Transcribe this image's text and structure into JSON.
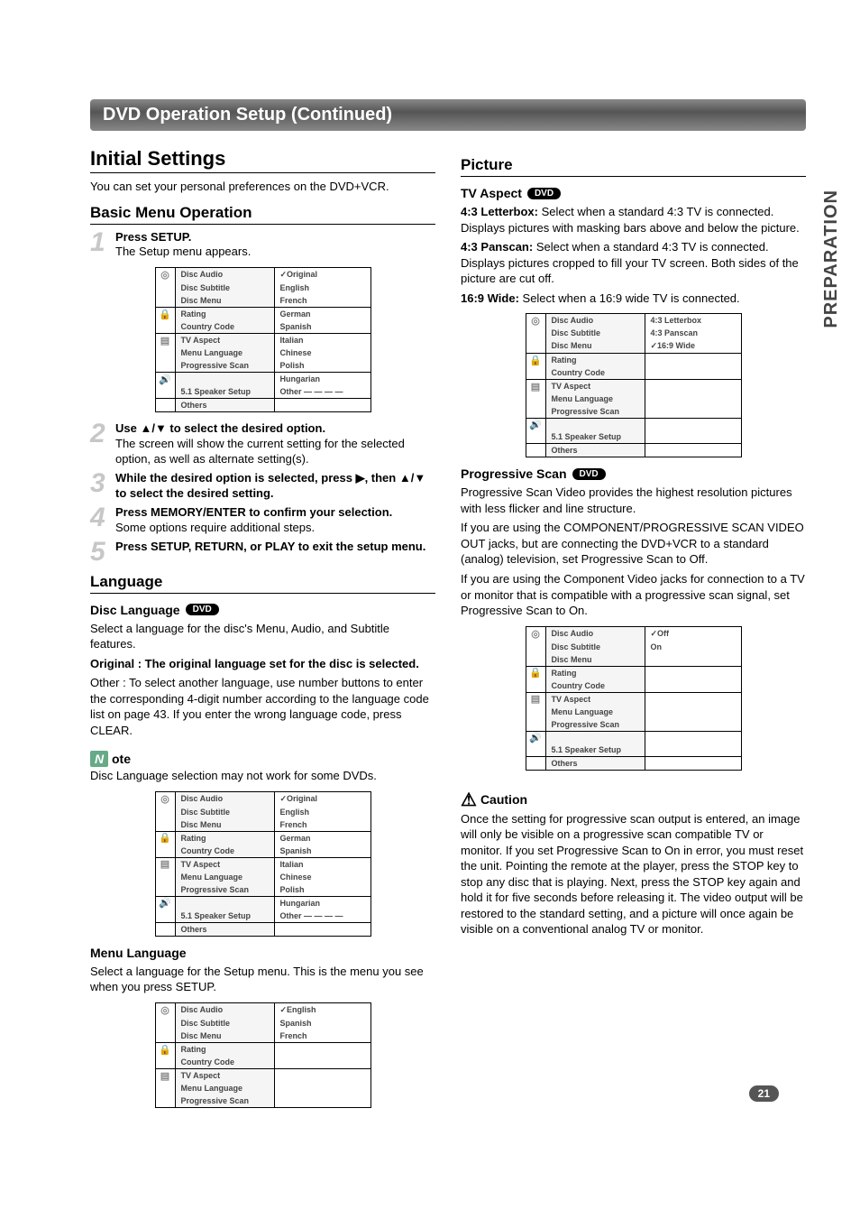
{
  "side_tab": "PREPARATION",
  "page_number": "21",
  "title_bar": "DVD Operation Setup  (Continued)",
  "left": {
    "initial_settings": {
      "heading": "Initial Settings",
      "intro": "You can set your personal preferences on the DVD+VCR."
    },
    "basic_menu": {
      "heading": "Basic Menu Operation",
      "steps": [
        {
          "num": "1",
          "lead": "Press SETUP.",
          "rest": "The Setup menu appears."
        },
        {
          "num": "2",
          "lead": "Use ▲/▼ to select the desired option.",
          "rest": "The screen will show the current setting for the selected option, as well as alternate setting(s)."
        },
        {
          "num": "3",
          "lead": "While the desired option is selected, press ▶, then ▲/▼ to select the desired setting.",
          "rest": ""
        },
        {
          "num": "4",
          "lead": "Press MEMORY/ENTER to confirm your selection.",
          "rest": "Some options require additional steps."
        },
        {
          "num": "5",
          "lead": "Press SETUP, RETURN, or PLAY to exit the setup menu.",
          "rest": ""
        }
      ]
    },
    "language": {
      "heading": "Language",
      "disc_lang_title": "Disc Language",
      "disc_lang_body": "Select a language for the disc's Menu, Audio, and Subtitle features.",
      "original": "Original : The original language set for the disc is selected.",
      "other": "Other : To select another language, use number buttons to enter the corresponding 4-digit number according to the language code list on page 43. If you enter the wrong language code, press CLEAR.",
      "note_label": "ote",
      "note_body": "Disc Language selection may not work for some DVDs.",
      "menu_lang_title": "Menu Language",
      "menu_lang_body": "Select a language for the Setup menu. This is the menu you see when you press SETUP."
    },
    "menu1": {
      "left_items": [
        "Disc Audio",
        "Disc Subtitle",
        "Disc Menu",
        "Rating",
        "Country Code",
        "TV Aspect",
        "Menu Language",
        "Progressive Scan",
        "",
        "5.1 Speaker Setup",
        "Others"
      ],
      "right_items": [
        "✓Original",
        "English",
        "French",
        "German",
        "Spanish",
        "Italian",
        "Chinese",
        "Polish",
        "Hungarian",
        "Other  — — — —"
      ]
    },
    "menu2": {
      "left_items": [
        "Disc Audio",
        "Disc Subtitle",
        "Disc Menu",
        "Rating",
        "Country Code",
        "TV Aspect",
        "Menu Language",
        "Progressive Scan",
        "",
        "5.1 Speaker Setup",
        "Others"
      ],
      "right_items": [
        "✓Original",
        "English",
        "French",
        "German",
        "Spanish",
        "Italian",
        "Chinese",
        "Polish",
        "Hungarian",
        "Other  — — — —"
      ]
    },
    "menu3": {
      "left_items": [
        "Disc Audio",
        "Disc Subtitle",
        "Disc Menu",
        "Rating",
        "Country Code",
        "TV Aspect",
        "Menu Language",
        "Progressive Scan"
      ],
      "right_items": [
        "✓English",
        "Spanish",
        "French"
      ]
    }
  },
  "right": {
    "picture": {
      "heading": "Picture",
      "tv_aspect_title": "TV Aspect",
      "p1_lead": "4:3 Letterbox:",
      "p1": " Select when a standard 4:3 TV is connected. Displays pictures with masking bars above and below the picture.",
      "p2_lead": "4:3 Panscan:",
      "p2": " Select when a standard 4:3 TV is connected. Displays pictures cropped to fill your TV screen. Both sides of the picture are cut off.",
      "p3_lead": "16:9 Wide:",
      "p3": " Select when a 16:9 wide TV is connected."
    },
    "menu4": {
      "left_items": [
        "Disc Audio",
        "Disc Subtitle",
        "Disc Menu",
        "Rating",
        "Country Code",
        "TV Aspect",
        "Menu Language",
        "Progressive Scan",
        "",
        "5.1 Speaker Setup",
        "Others"
      ],
      "right_items": [
        "4:3 Letterbox",
        "4:3 Panscan",
        "✓16:9 Wide"
      ]
    },
    "progressive": {
      "title": "Progressive Scan",
      "p1": "Progressive Scan Video provides the highest resolution pictures with less flicker and line structure.",
      "p2": "If you are using the COMPONENT/PROGRESSIVE SCAN VIDEO OUT jacks, but are connecting the DVD+VCR to a standard (analog) television, set Progressive Scan to Off.",
      "p3": "If you are using the Component Video jacks for connection to a TV or monitor that is compatible with a progressive scan signal, set Progressive Scan to On."
    },
    "menu5": {
      "left_items": [
        "Disc Audio",
        "Disc Subtitle",
        "Disc Menu",
        "Rating",
        "Country Code",
        "TV Aspect",
        "Menu Language",
        "Progressive Scan",
        "",
        "5.1 Speaker Setup",
        "Others"
      ],
      "right_items": [
        "✓Off",
        "On"
      ]
    },
    "caution": {
      "label": "Caution",
      "body": "Once the setting for progressive scan output is entered, an image will only be visible on a progressive scan compatible TV or monitor. If you set Progressive Scan to On in error, you must reset the unit. Pointing the remote at the player, press the STOP key to stop any disc that is playing. Next, press the STOP key again and hold it for five seconds before releasing it. The video output will be restored to the standard setting, and a picture will once again be visible on a conventional analog TV or monitor."
    }
  },
  "dvd_pill": "DVD",
  "icons": [
    "◎",
    "🔒",
    "▤",
    "🔊"
  ]
}
